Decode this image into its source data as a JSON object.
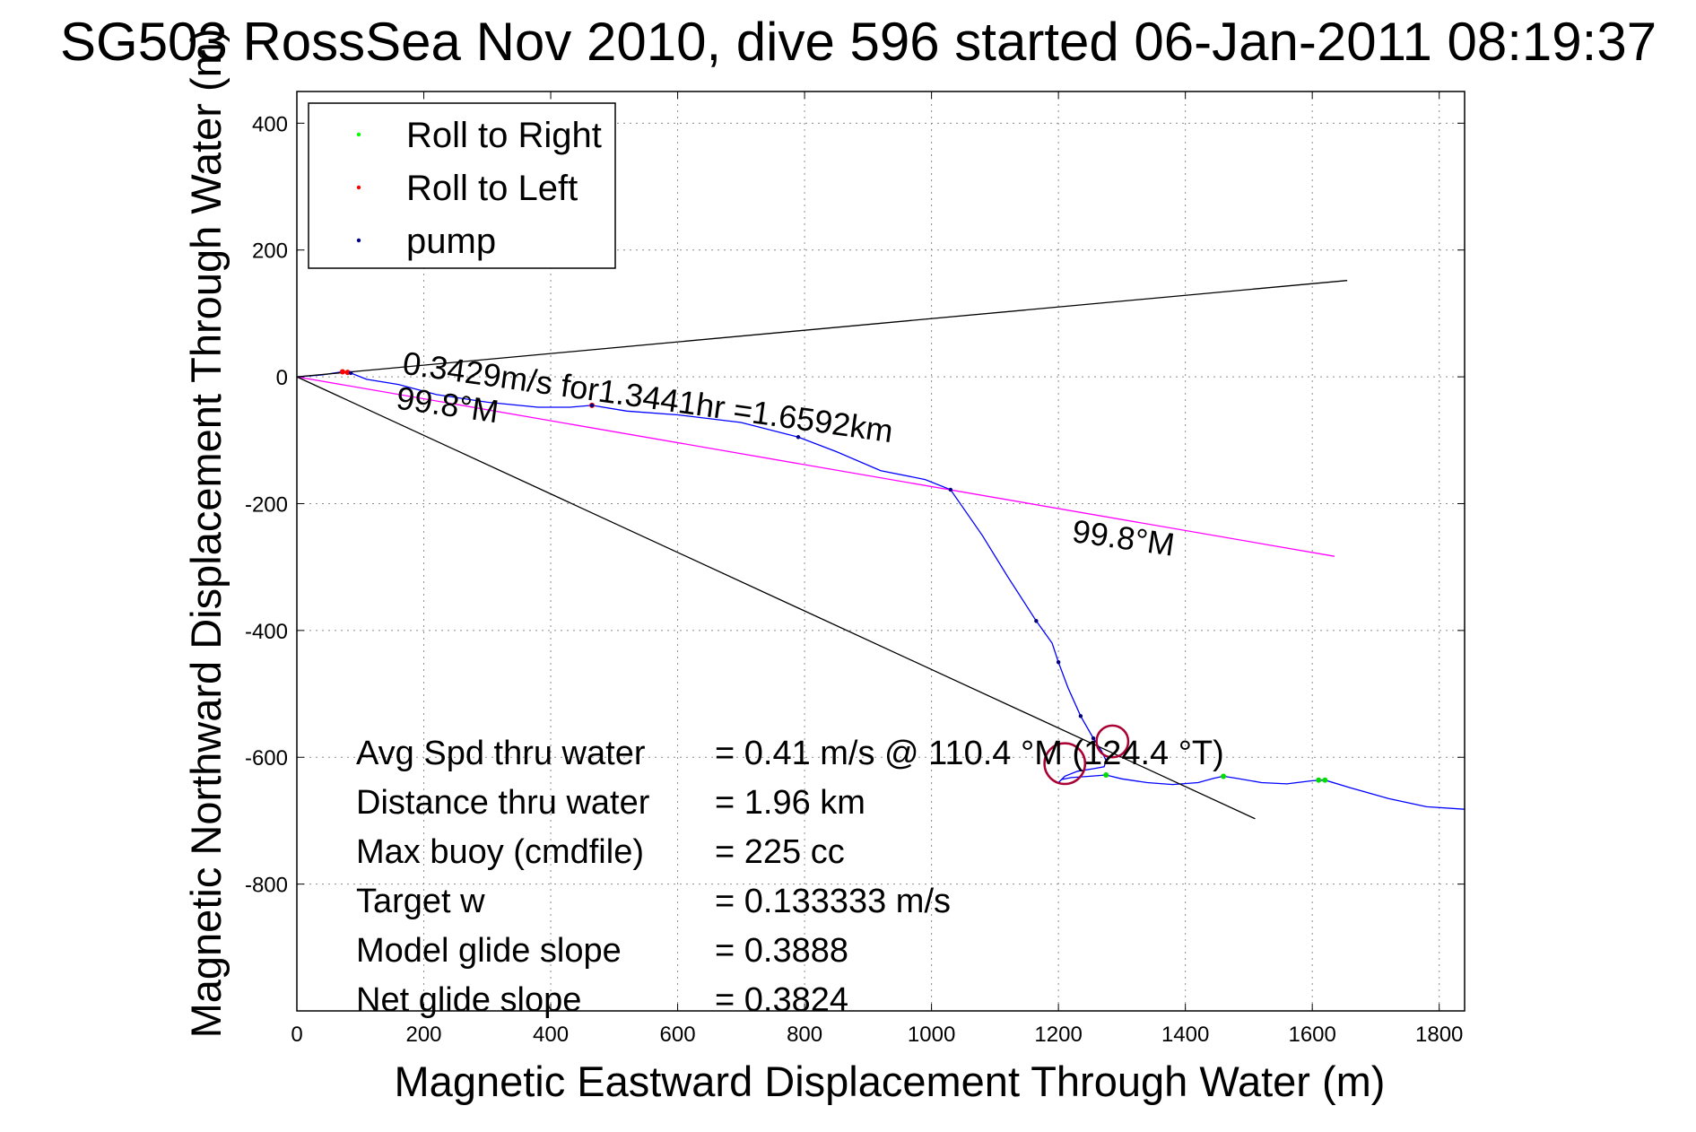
{
  "chart_data": {
    "type": "line",
    "title": "SG503 RossSea Nov 2010, dive 596 started 06-Jan-2011 08:19:37",
    "xlabel": "Magnetic Eastward Displacement Through Water (m)",
    "ylabel": "Magnetic Northward Displacement Through Water (m)",
    "xlim": [
      0,
      1840
    ],
    "ylim": [
      -1000,
      450
    ],
    "xticks": [
      0,
      200,
      400,
      600,
      800,
      1000,
      1200,
      1400,
      1600,
      1800
    ],
    "yticks": [
      400,
      200,
      0,
      -200,
      -400,
      -600,
      -800
    ],
    "grid": true,
    "legend": {
      "placement": "top-left",
      "entries": [
        {
          "label": "Roll to Right",
          "color": "#00ff00"
        },
        {
          "label": "Roll to Left",
          "color": "#ff0000"
        },
        {
          "label": "pump",
          "color": "#000080"
        }
      ]
    },
    "series": [
      {
        "name": "track",
        "color": "#0000ff",
        "points": [
          [
            0,
            0
          ],
          [
            40,
            3
          ],
          [
            72,
            8
          ],
          [
            85,
            6
          ],
          [
            110,
            -4
          ],
          [
            160,
            -12
          ],
          [
            220,
            -28
          ],
          [
            300,
            -40
          ],
          [
            380,
            -48
          ],
          [
            430,
            -48
          ],
          [
            465,
            -45
          ],
          [
            520,
            -54
          ],
          [
            600,
            -60
          ],
          [
            700,
            -72
          ],
          [
            790,
            -95
          ],
          [
            850,
            -118
          ],
          [
            920,
            -148
          ],
          [
            990,
            -162
          ],
          [
            1030,
            -178
          ],
          [
            1080,
            -250
          ],
          [
            1120,
            -315
          ],
          [
            1165,
            -385
          ],
          [
            1190,
            -420
          ],
          [
            1200,
            -450
          ],
          [
            1215,
            -490
          ],
          [
            1235,
            -535
          ],
          [
            1255,
            -570
          ],
          [
            1268,
            -590
          ],
          [
            1275,
            -605
          ],
          [
            1272,
            -615
          ],
          [
            1255,
            -618
          ],
          [
            1230,
            -622
          ],
          [
            1210,
            -630
          ],
          [
            1200,
            -640
          ],
          [
            1205,
            -635
          ],
          [
            1220,
            -632
          ],
          [
            1250,
            -630
          ],
          [
            1275,
            -628
          ],
          [
            1300,
            -634
          ],
          [
            1340,
            -640
          ],
          [
            1380,
            -643
          ],
          [
            1420,
            -640
          ],
          [
            1445,
            -633
          ],
          [
            1460,
            -630
          ],
          [
            1480,
            -633
          ],
          [
            1520,
            -640
          ],
          [
            1560,
            -642
          ],
          [
            1600,
            -637
          ],
          [
            1620,
            -636
          ],
          [
            1660,
            -648
          ],
          [
            1720,
            -665
          ],
          [
            1780,
            -678
          ],
          [
            1840,
            -682
          ]
        ]
      },
      {
        "name": "heading",
        "color": "#ff00ff",
        "points": [
          [
            0,
            0
          ],
          [
            1635,
            -283
          ]
        ]
      },
      {
        "name": "bound-upper",
        "color": "#000000",
        "points": [
          [
            0,
            0
          ],
          [
            1655,
            152
          ]
        ]
      },
      {
        "name": "bound-lower",
        "color": "#000000",
        "points": [
          [
            0,
            0
          ],
          [
            1510,
            -697
          ]
        ]
      }
    ],
    "markers": {
      "roll_right": [
        [
          1275,
          -628
        ],
        [
          1460,
          -630
        ],
        [
          1610,
          -636
        ],
        [
          1620,
          -636
        ]
      ],
      "roll_left": [
        [
          72,
          8
        ],
        [
          80,
          7
        ],
        [
          465,
          -45
        ]
      ],
      "pump": [
        [
          85,
          6
        ],
        [
          465,
          -45
        ],
        [
          790,
          -95
        ],
        [
          1030,
          -178
        ],
        [
          1165,
          -385
        ],
        [
          1200,
          -450
        ],
        [
          1235,
          -535
        ],
        [
          1255,
          -570
        ]
      ]
    },
    "circles": [
      {
        "center": [
          1210,
          -610
        ],
        "radius_m": 32,
        "color": "#aa0033"
      },
      {
        "center": [
          1285,
          -575
        ],
        "radius_m": 25,
        "color": "#aa0033"
      }
    ],
    "annotations": [
      {
        "text": "0.3429m/s for1.3441hr =1.6592km",
        "x": 165,
        "y": 5,
        "angle_deg": 8
      },
      {
        "text": "99.8°M",
        "x": 155,
        "y": -50,
        "angle_deg": 8
      },
      {
        "text": "99.8°M",
        "x": 1220,
        "y": -260,
        "angle_deg": 8
      }
    ],
    "stats": [
      {
        "label": "Avg Spd thru water",
        "value": "=  0.41 m/s @ 110.4 °M (124.4 °T)"
      },
      {
        "label": "Distance thru water",
        "value": "=  1.96 km"
      },
      {
        "label": "Max buoy (cmdfile)",
        "value": "= 225 cc"
      },
      {
        "label": "Target w",
        "value": "= 0.133333 m/s"
      },
      {
        "label": "Model glide slope",
        "value": "= 0.3888"
      },
      {
        "label": "Net glide slope",
        "value": "= 0.3824"
      }
    ]
  }
}
